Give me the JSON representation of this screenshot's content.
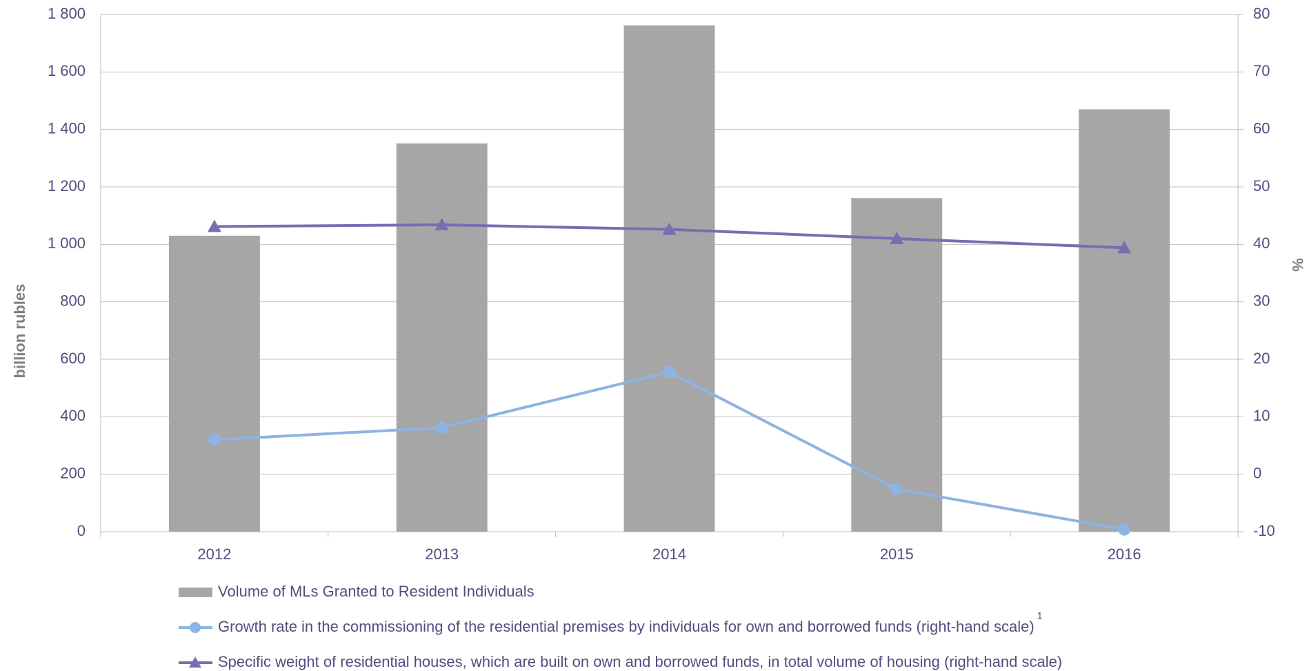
{
  "chart_data": {
    "type": "bar",
    "categories": [
      "2012",
      "2013",
      "2014",
      "2015",
      "2016"
    ],
    "ylabel": "billion rubles",
    "y2label": "%",
    "ylim": [
      0,
      1800
    ],
    "yticks": [
      0,
      200,
      400,
      600,
      800,
      {
        "value": 1000,
        "label": "1 000"
      },
      {
        "value": 1200,
        "label": "1 200"
      },
      {
        "value": 1400,
        "label": "1 400"
      },
      {
        "value": 1600,
        "label": "1 600"
      },
      {
        "value": 1800,
        "label": "1 800"
      }
    ],
    "y2lim": [
      -10,
      80
    ],
    "y2ticks": [
      -10,
      0,
      10,
      20,
      30,
      40,
      50,
      60,
      70,
      80
    ],
    "grid": true,
    "legend": "bottom",
    "legend_footnote": "1",
    "series": [
      {
        "name": "Volume of MLs Granted to Resident Individuals",
        "type": "bar",
        "color": "#a6a6a6",
        "values": [
          1030,
          1351,
          1762,
          1161,
          1470
        ]
      },
      {
        "name": "Growth rate in the commissioning of the residential premises by individuals for own and borrowed funds (right-hand scale)",
        "type": "line",
        "marker": "circle",
        "axis": "y2",
        "color": "#8db4e2",
        "values": [
          6.0,
          8.1,
          17.8,
          -2.6,
          -9.6
        ]
      },
      {
        "name": "Specific weight of residential houses, which are built on own and borrowed funds, in total volume of housing (right-hand scale)",
        "type": "line",
        "marker": "triangle",
        "axis": "y2",
        "color": "#7470b0",
        "values": [
          43.1,
          43.4,
          42.6,
          41.0,
          39.4
        ]
      }
    ]
  }
}
